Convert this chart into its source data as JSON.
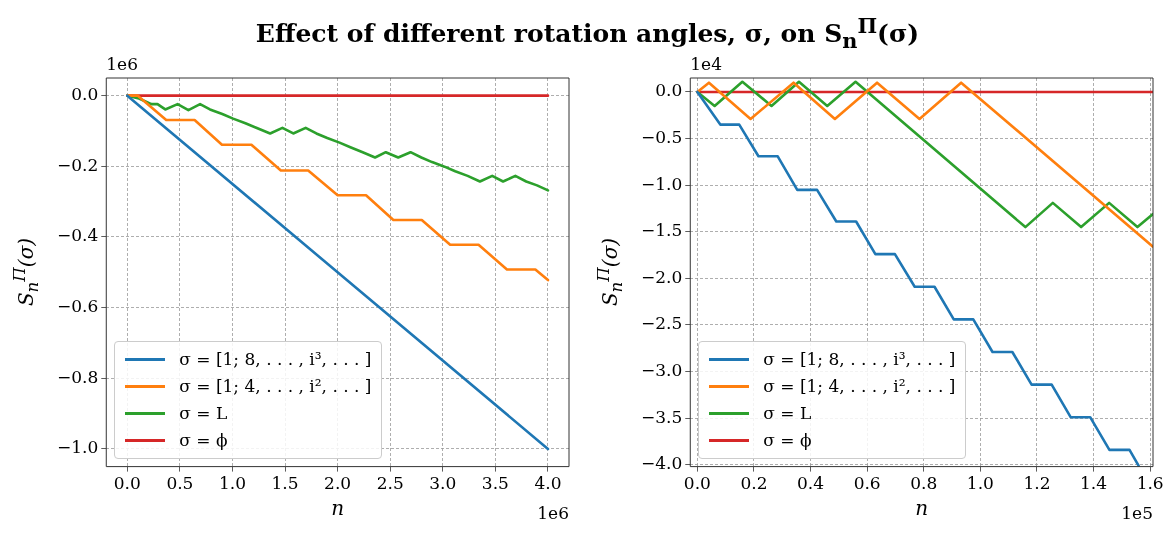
{
  "chart_data": [
    {
      "type": "line",
      "title": "Effect of different rotation angles, σ, on S$_{n}$$^{Π}$(σ)",
      "xlabel": "n",
      "ylabel": "S$_{n}$$^{Π}$(σ)",
      "annotations": [
        "1e6",
        "1e6"
      ],
      "grid": true,
      "legend": "bottom left",
      "xlim": [
        -0.2,
        4.2
      ],
      "ylim": [
        -1.05,
        0.05
      ],
      "xticks": [
        {
          "value": 0,
          "label": "0.0"
        },
        0.5,
        {
          "value": 1,
          "label": "1.0"
        },
        1.5,
        {
          "value": 2,
          "label": "2.0"
        },
        2.5,
        {
          "value": 3,
          "label": "3.0"
        },
        3.5,
        {
          "value": 4,
          "label": "4.0"
        }
      ],
      "yticks": [
        {
          "value": 0,
          "label": "0.0"
        },
        {
          "value": -0.2,
          "label": "−0.2"
        },
        {
          "value": -0.4,
          "label": "−0.4"
        },
        {
          "value": -0.6,
          "label": "−0.6"
        },
        {
          "value": -0.8,
          "label": "−0.8"
        },
        {
          "value": -1,
          "label": "−1.0"
        }
      ],
      "series": [
        {
          "name": "σ = [1; 8, . . . , i³, . . . ]",
          "color": "#1f77b4",
          "x": [
            0,
            4
          ],
          "values": [
            0,
            -1
          ]
        },
        {
          "name": "σ = [1; 4, . . . , i², . . . ]",
          "color": "#ff7f0e",
          "x": [
            0,
            0.1,
            0.37,
            0.64,
            0.9,
            1.18,
            1.46,
            1.72,
            2.0,
            2.27,
            2.53,
            2.8,
            3.07,
            3.34,
            3.61,
            3.88,
            4.0
          ],
          "values": [
            0,
            0,
            -0.069,
            -0.069,
            -0.139,
            -0.139,
            -0.212,
            -0.212,
            -0.282,
            -0.282,
            -0.352,
            -0.352,
            -0.422,
            -0.422,
            -0.492,
            -0.492,
            -0.522
          ]
        },
        {
          "name": "σ = L",
          "color": "#2ca02c",
          "x": [
            0,
            0.111,
            0.229,
            0.287,
            0.361,
            0.478,
            0.581,
            0.692,
            0.786,
            0.903,
            1.006,
            1.123,
            1.226,
            1.358,
            1.475,
            1.578,
            1.696,
            1.798,
            1.901,
            2.018,
            2.121,
            2.238,
            2.356,
            2.458,
            2.576,
            2.693,
            2.796,
            2.898,
            3.016,
            3.118,
            3.236,
            3.353,
            3.47,
            3.573,
            3.69,
            3.793,
            3.896,
            4.0
          ],
          "values": [
            0,
            -0.008,
            -0.024,
            -0.024,
            -0.039,
            -0.024,
            -0.041,
            -0.024,
            -0.039,
            -0.052,
            -0.065,
            -0.078,
            -0.091,
            -0.107,
            -0.091,
            -0.107,
            -0.091,
            -0.107,
            -0.12,
            -0.133,
            -0.146,
            -0.16,
            -0.175,
            -0.16,
            -0.175,
            -0.16,
            -0.175,
            -0.188,
            -0.201,
            -0.214,
            -0.227,
            -0.243,
            -0.227,
            -0.243,
            -0.227,
            -0.243,
            -0.254,
            -0.268
          ]
        },
        {
          "name": "σ = ϕ",
          "color": "#d62728",
          "x": [
            0,
            4
          ],
          "values": [
            0,
            0
          ]
        }
      ]
    },
    {
      "type": "line",
      "xlabel": "n",
      "ylabel": "S$_{n}$$^{Π}$(σ)",
      "annotations": [
        "1e4",
        "1e5"
      ],
      "grid": true,
      "legend": "bottom left",
      "xlim": [
        -0.025,
        1.61
      ],
      "ylim": [
        -4.02,
        0.15
      ],
      "xticks": [
        {
          "value": 0,
          "label": "0.0"
        },
        0.2,
        0.4,
        0.6,
        0.8,
        {
          "value": 1,
          "label": "1.0"
        },
        1.2,
        1.4,
        1.6
      ],
      "yticks": [
        {
          "value": 0,
          "label": "0.0"
        },
        {
          "value": -0.5,
          "label": "−0.5"
        },
        {
          "value": -1,
          "label": "−1.0"
        },
        {
          "value": -1.5,
          "label": "−1.5"
        },
        {
          "value": -2,
          "label": "−2.0"
        },
        {
          "value": -2.5,
          "label": "−2.5"
        },
        {
          "value": -3,
          "label": "−3.0"
        },
        {
          "value": -3.5,
          "label": "−3.5"
        },
        {
          "value": -4,
          "label": "−4.0"
        }
      ],
      "series": [
        {
          "name": "σ = [1; 8, . . . , i³, . . . ]",
          "color": "#1f77b4",
          "x": [
            0,
            0.081,
            0.148,
            0.216,
            0.284,
            0.353,
            0.423,
            0.491,
            0.561,
            0.629,
            0.698,
            0.768,
            0.838,
            0.906,
            0.975,
            1.043,
            1.113,
            1.181,
            1.252,
            1.319,
            1.388,
            1.456,
            1.527,
            1.559
          ],
          "values": [
            0,
            -0.35,
            -0.35,
            -0.69,
            -0.69,
            -1.05,
            -1.05,
            -1.39,
            -1.39,
            -1.74,
            -1.74,
            -2.09,
            -2.09,
            -2.44,
            -2.44,
            -2.79,
            -2.79,
            -3.14,
            -3.14,
            -3.49,
            -3.49,
            -3.84,
            -3.84,
            -4.01
          ]
        },
        {
          "name": "σ = [1; 4, . . . , i², . . . ]",
          "color": "#ff7f0e",
          "x": [
            0,
            0.041,
            0.188,
            0.34,
            0.486,
            0.635,
            0.785,
            0.932,
            1.61
          ],
          "values": [
            0,
            0.1,
            -0.29,
            0.1,
            -0.29,
            0.1,
            -0.29,
            0.1,
            -1.66
          ]
        },
        {
          "name": "σ = L",
          "color": "#2ca02c",
          "x": [
            0,
            0.061,
            0.159,
            0.262,
            0.359,
            0.459,
            0.559,
            1.159,
            1.256,
            1.356,
            1.455,
            1.555,
            1.61
          ],
          "values": [
            0,
            -0.15,
            0.11,
            -0.15,
            0.11,
            -0.15,
            0.11,
            -1.45,
            -1.19,
            -1.45,
            -1.19,
            -1.45,
            -1.31
          ]
        },
        {
          "name": "σ = ϕ",
          "color": "#d62728",
          "x": [
            0,
            1.61
          ],
          "values": [
            0,
            0
          ]
        }
      ]
    }
  ]
}
